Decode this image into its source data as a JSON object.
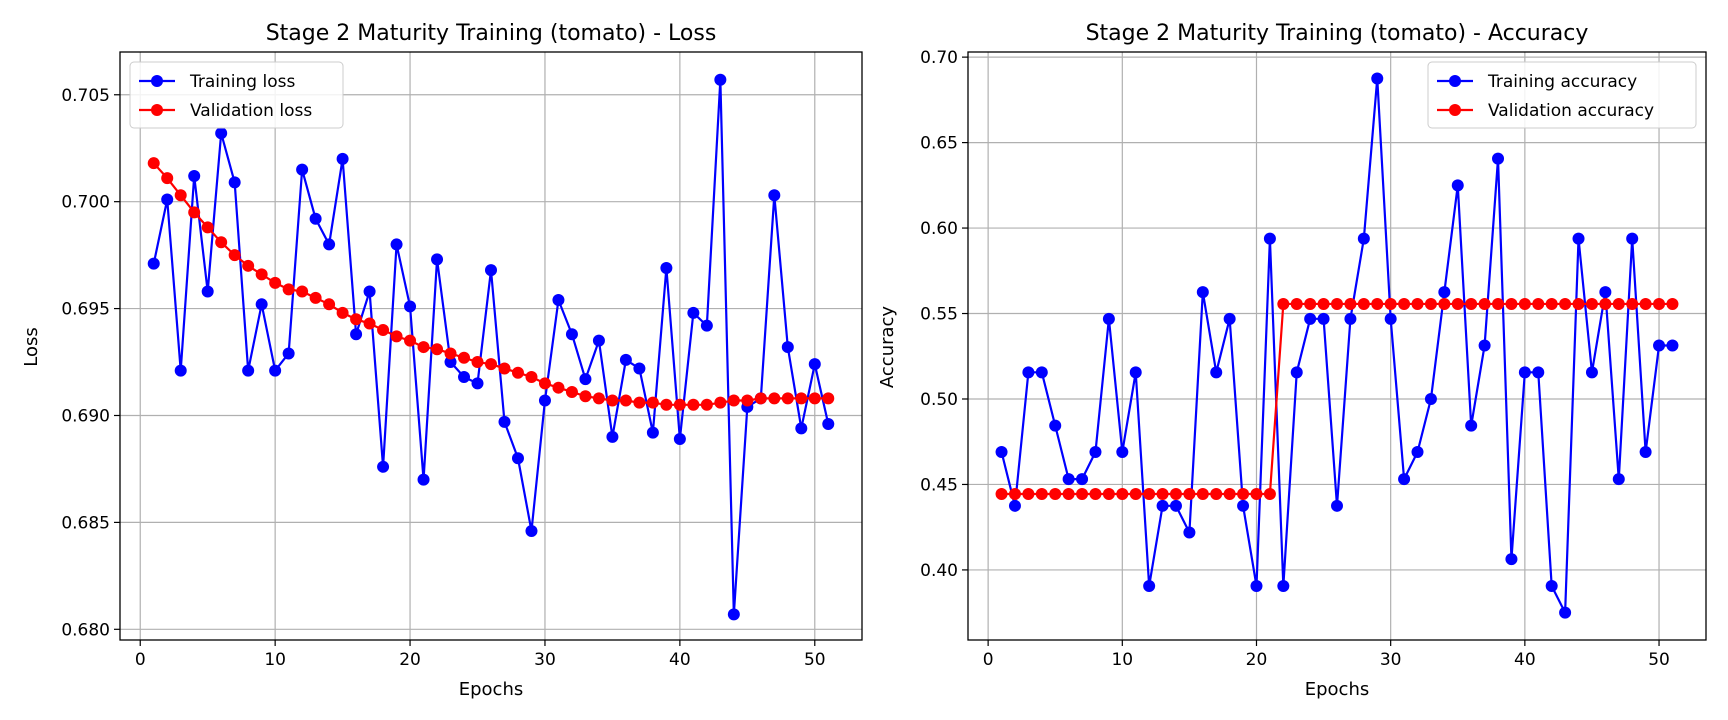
{
  "colors": {
    "training": "#0000ff",
    "validation": "#ff0000",
    "grid": "#b0b0b0",
    "axes": "#000000",
    "background": "#ffffff"
  },
  "chart_data": [
    {
      "type": "line",
      "title": "Stage 2 Maturity Training (tomato) - Loss",
      "xlabel": "Epochs",
      "ylabel": "Loss",
      "xlim": [
        -1.5,
        53.5
      ],
      "ylim": [
        0.6795,
        0.707
      ],
      "xticks": [
        0,
        10,
        20,
        30,
        40,
        50
      ],
      "xtick_labels": [
        "0",
        "10",
        "20",
        "30",
        "40",
        "50"
      ],
      "yticks": [
        0.68,
        0.685,
        0.69,
        0.695,
        0.7,
        0.705
      ],
      "ytick_labels": [
        "0.680",
        "0.685",
        "0.690",
        "0.695",
        "0.700",
        "0.705"
      ],
      "grid": true,
      "legend_position": "top-left",
      "x": [
        1,
        2,
        3,
        4,
        5,
        6,
        7,
        8,
        9,
        10,
        11,
        12,
        13,
        14,
        15,
        16,
        17,
        18,
        19,
        20,
        21,
        22,
        23,
        24,
        25,
        26,
        27,
        28,
        29,
        30,
        31,
        32,
        33,
        34,
        35,
        36,
        37,
        38,
        39,
        40,
        41,
        42,
        43,
        44,
        45,
        46,
        47,
        48,
        49,
        50,
        51
      ],
      "series": [
        {
          "name": "Training loss",
          "color": "#0000ff",
          "marker": "circle",
          "values": [
            0.6971,
            0.7001,
            0.6921,
            0.7012,
            0.6958,
            0.7032,
            0.7009,
            0.6921,
            0.6952,
            0.6921,
            0.6929,
            0.7015,
            0.6992,
            0.698,
            0.702,
            0.6938,
            0.6958,
            0.6876,
            0.698,
            0.6951,
            0.687,
            0.6973,
            0.6925,
            0.6918,
            0.6915,
            0.6968,
            0.6897,
            0.688,
            0.6846,
            0.6907,
            0.6954,
            0.6938,
            0.6917,
            0.6935,
            0.689,
            0.6926,
            0.6922,
            0.6892,
            0.6969,
            0.6889,
            0.6948,
            0.6942,
            0.7057,
            0.6807,
            0.6904,
            0.6908,
            0.7003,
            0.6932,
            0.6894,
            0.6924,
            0.6896
          ]
        },
        {
          "name": "Validation loss",
          "color": "#ff0000",
          "marker": "circle",
          "values": [
            0.7018,
            0.7011,
            0.7003,
            0.6995,
            0.6988,
            0.6981,
            0.6975,
            0.697,
            0.6966,
            0.6962,
            0.6959,
            0.6958,
            0.6955,
            0.6952,
            0.6948,
            0.6945,
            0.6943,
            0.694,
            0.6937,
            0.6935,
            0.6932,
            0.6931,
            0.6929,
            0.6927,
            0.6925,
            0.6924,
            0.6922,
            0.692,
            0.6918,
            0.6915,
            0.6913,
            0.6911,
            0.6909,
            0.6908,
            0.6907,
            0.6907,
            0.6906,
            0.6906,
            0.6905,
            0.6905,
            0.6905,
            0.6905,
            0.6906,
            0.6907,
            0.6907,
            0.6908,
            0.6908,
            0.6908,
            0.6908,
            0.6908,
            0.6908
          ]
        }
      ]
    },
    {
      "type": "line",
      "title": "Stage 2 Maturity Training (tomato) - Accuracy",
      "xlabel": "Epochs",
      "ylabel": "Accuracy",
      "xlim": [
        -1.5,
        53.5
      ],
      "ylim": [
        0.359,
        0.703
      ],
      "xticks": [
        0,
        10,
        20,
        30,
        40,
        50
      ],
      "xtick_labels": [
        "0",
        "10",
        "20",
        "30",
        "40",
        "50"
      ],
      "yticks": [
        0.4,
        0.45,
        0.5,
        0.55,
        0.6,
        0.65,
        0.7
      ],
      "ytick_labels": [
        "0.40",
        "0.45",
        "0.50",
        "0.55",
        "0.60",
        "0.65",
        "0.70"
      ],
      "grid": true,
      "legend_position": "top-right",
      "x": [
        1,
        2,
        3,
        4,
        5,
        6,
        7,
        8,
        9,
        10,
        11,
        12,
        13,
        14,
        15,
        16,
        17,
        18,
        19,
        20,
        21,
        22,
        23,
        24,
        25,
        26,
        27,
        28,
        29,
        30,
        31,
        32,
        33,
        34,
        35,
        36,
        37,
        38,
        39,
        40,
        41,
        42,
        43,
        44,
        45,
        46,
        47,
        48,
        49,
        50,
        51
      ],
      "series": [
        {
          "name": "Training accuracy",
          "color": "#0000ff",
          "marker": "circle",
          "values": [
            0.469,
            0.4375,
            0.5156,
            0.5156,
            0.4844,
            0.4531,
            0.4531,
            0.469,
            0.5469,
            0.469,
            0.5156,
            0.3906,
            0.4375,
            0.4375,
            0.4219,
            0.5625,
            0.5156,
            0.5469,
            0.4375,
            0.3906,
            0.5938,
            0.3906,
            0.5156,
            0.5469,
            0.5469,
            0.4375,
            0.5469,
            0.5938,
            0.6875,
            0.5469,
            0.4531,
            0.469,
            0.5,
            0.5625,
            0.625,
            0.4844,
            0.5313,
            0.6406,
            0.4063,
            0.5156,
            0.5156,
            0.3906,
            0.375,
            0.5938,
            0.5156,
            0.5625,
            0.4531,
            0.5938,
            0.469,
            0.5313,
            0.5313
          ]
        },
        {
          "name": "Validation accuracy",
          "color": "#ff0000",
          "marker": "circle",
          "values": [
            0.4444,
            0.4444,
            0.4444,
            0.4444,
            0.4444,
            0.4444,
            0.4444,
            0.4444,
            0.4444,
            0.4444,
            0.4444,
            0.4444,
            0.4444,
            0.4444,
            0.4444,
            0.4444,
            0.4444,
            0.4444,
            0.4444,
            0.4444,
            0.4444,
            0.5556,
            0.5556,
            0.5556,
            0.5556,
            0.5556,
            0.5556,
            0.5556,
            0.5556,
            0.5556,
            0.5556,
            0.5556,
            0.5556,
            0.5556,
            0.5556,
            0.5556,
            0.5556,
            0.5556,
            0.5556,
            0.5556,
            0.5556,
            0.5556,
            0.5556,
            0.5556,
            0.5556,
            0.5556,
            0.5556,
            0.5556,
            0.5556,
            0.5556,
            0.5556
          ]
        }
      ]
    }
  ]
}
